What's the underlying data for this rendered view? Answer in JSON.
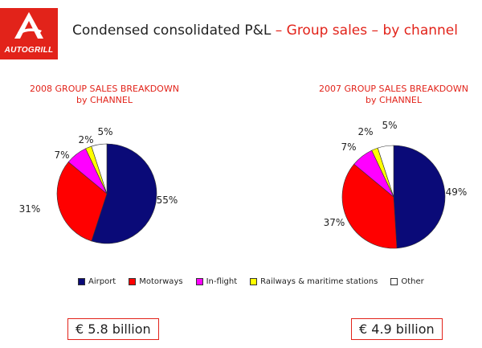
{
  "header": {
    "logo_text": "AUTOGRILL",
    "title_main": "Condensed consolidated P&L",
    "separator": "–",
    "title_part2": "Group sales",
    "title_part3": "by channel"
  },
  "colors": {
    "brand_red": "#e2231a",
    "airport": "#0a0a78",
    "motorways": "#ff0000",
    "inflight": "#ff00ff",
    "railways": "#ffff00",
    "other": "#ffffff"
  },
  "chart_data": [
    {
      "type": "pie",
      "title": "2008 GROUP SALES BREAKDOWN",
      "subtitle": "by CHANNEL",
      "categories": [
        "Airport",
        "Motorways",
        "In-flight",
        "Railways & maritime stations",
        "Other"
      ],
      "values": [
        55,
        31,
        7,
        2,
        5
      ],
      "value_labels": [
        "55%",
        "31%",
        "7%",
        "2%",
        "5%"
      ],
      "total_label": "€ 5.8 billion"
    },
    {
      "type": "pie",
      "title": "2007 GROUP SALES BREAKDOWN",
      "subtitle": "by CHANNEL",
      "categories": [
        "Airport",
        "Motorways",
        "In-flight",
        "Railways & maritime stations",
        "Other"
      ],
      "values": [
        49,
        37,
        7,
        2,
        5
      ],
      "value_labels": [
        "49%",
        "37%",
        "7%",
        "2%",
        "5%"
      ],
      "total_label": "€ 4.9 billion"
    }
  ],
  "legend": {
    "items": [
      {
        "label": "Airport",
        "color": "#0a0a78"
      },
      {
        "label": "Motorways",
        "color": "#ff0000"
      },
      {
        "label": "In-flight",
        "color": "#ff00ff"
      },
      {
        "label": "Railways & maritime stations",
        "color": "#ffff00"
      },
      {
        "label": "Other",
        "color": "#ffffff"
      }
    ]
  }
}
